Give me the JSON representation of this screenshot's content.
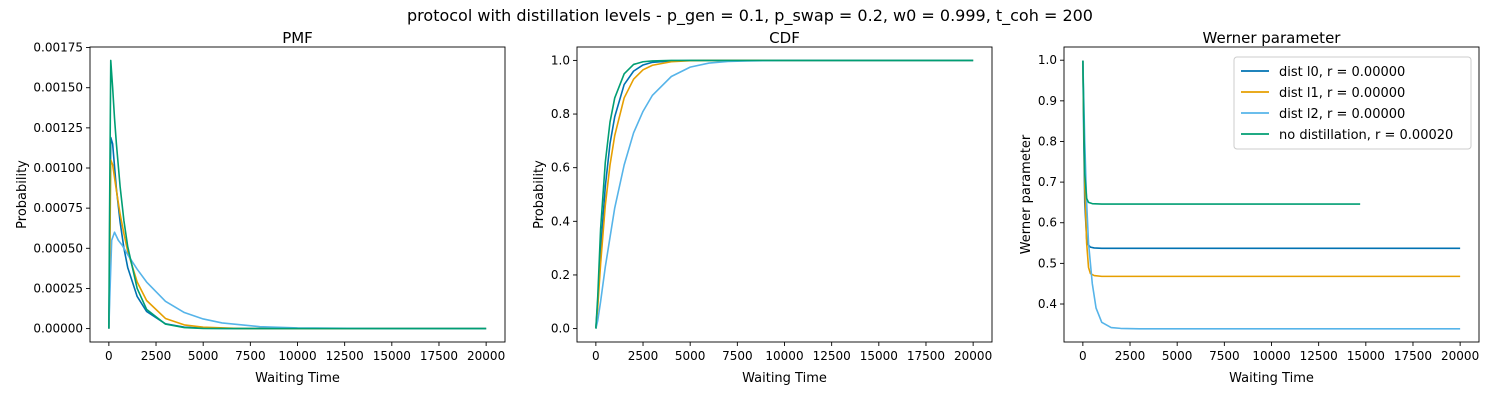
{
  "figure_title": "protocol with distillation levels - p_gen = 0.1, p_swap = 0.2, w0 = 0.999, t_coh = 200",
  "chart_data": [
    {
      "type": "line",
      "title": "PMF",
      "xlabel": "Waiting Time",
      "ylabel": "Probability",
      "xlim": [
        -1000,
        21000
      ],
      "ylim": [
        -8.35e-05,
        0.0017535
      ],
      "xticks": [
        0,
        2500,
        5000,
        7500,
        10000,
        12500,
        15000,
        17500,
        20000
      ],
      "xtick_labels": [
        "0",
        "2500",
        "5000",
        "7500",
        "10000",
        "12500",
        "15000",
        "17500",
        "20000"
      ],
      "yticks": [
        0,
        0.00025,
        0.0005,
        0.00075,
        0.001,
        0.00125,
        0.0015,
        0.00175
      ],
      "ytick_labels": [
        "0.00000",
        "0.00025",
        "0.00050",
        "0.00075",
        "0.00100",
        "0.00125",
        "0.00150",
        "0.00175"
      ],
      "series": [
        {
          "color": "#0072b2",
          "x": [
            0,
            30,
            100,
            200,
            400,
            600,
            800,
            1000,
            1500,
            2000,
            3000,
            4000,
            5000,
            7000,
            10000,
            15000,
            20000
          ],
          "y": [
            0,
            0.0003,
            0.00119,
            0.00115,
            0.00087,
            0.00066,
            0.0005,
            0.00038,
            0.0002,
            0.000107,
            3e-05,
            9e-06,
            2.5e-06,
            0,
            0,
            0,
            0
          ]
        },
        {
          "color": "#e69f00",
          "x": [
            0,
            30,
            100,
            200,
            400,
            600,
            800,
            1000,
            1500,
            2000,
            3000,
            4000,
            5000,
            7000,
            10000,
            15000,
            20000
          ],
          "y": [
            0,
            0.0002,
            0.00105,
            0.00102,
            0.00086,
            0.00071,
            0.00059,
            0.00048,
            0.00029,
            0.000175,
            6.3e-05,
            2.3e-05,
            8.5e-06,
            0,
            0,
            0,
            0
          ]
        },
        {
          "color": "#56b4e9",
          "x": [
            0,
            50,
            150,
            300,
            500,
            700,
            1000,
            1500,
            2000,
            3000,
            4000,
            5000,
            6000,
            8000,
            10000,
            15000,
            20000
          ],
          "y": [
            0,
            0.0002,
            0.00055,
            0.0006,
            0.00055,
            0.00052,
            0.00046,
            0.00037,
            0.00029,
            0.00017,
            0.0001,
            6e-05,
            3.5e-05,
            1.2e-05,
            4e-06,
            0,
            0
          ]
        },
        {
          "color": "#009e73",
          "x": [
            0,
            30,
            100,
            200,
            300,
            400,
            600,
            800,
            1000,
            1500,
            2000,
            3000,
            4000,
            5000,
            7000,
            10000,
            15000,
            20000
          ],
          "y": [
            0,
            0.0006,
            0.00167,
            0.0015,
            0.00131,
            0.00115,
            0.00088,
            0.00067,
            0.00051,
            0.00025,
            0.00012,
            2.8e-05,
            6e-06,
            1e-06,
            0,
            0,
            0,
            0
          ]
        }
      ]
    },
    {
      "type": "line",
      "title": "CDF",
      "xlabel": "Waiting Time",
      "ylabel": "Probability",
      "xlim": [
        -1000,
        21000
      ],
      "ylim": [
        -0.05,
        1.05
      ],
      "xticks": [
        0,
        2500,
        5000,
        7500,
        10000,
        12500,
        15000,
        17500,
        20000
      ],
      "xtick_labels": [
        "0",
        "2500",
        "5000",
        "7500",
        "10000",
        "12500",
        "15000",
        "17500",
        "20000"
      ],
      "yticks": [
        0,
        0.2,
        0.4,
        0.6,
        0.8,
        1.0
      ],
      "ytick_labels": [
        "0.0",
        "0.2",
        "0.4",
        "0.6",
        "0.8",
        "1.0"
      ],
      "series": [
        {
          "color": "#0072b2",
          "x": [
            0,
            100,
            250,
            500,
            750,
            1000,
            1500,
            2000,
            2500,
            3000,
            4000,
            5000,
            6000,
            8000,
            10000,
            15000,
            20000
          ],
          "y": [
            0,
            0.1,
            0.29,
            0.53,
            0.69,
            0.79,
            0.91,
            0.96,
            0.983,
            0.993,
            0.998,
            0.9995,
            1,
            1,
            1,
            1,
            1
          ]
        },
        {
          "color": "#e69f00",
          "x": [
            0,
            100,
            250,
            500,
            750,
            1000,
            1500,
            2000,
            2500,
            3000,
            4000,
            5000,
            6000,
            8000,
            10000,
            15000,
            20000
          ],
          "y": [
            0,
            0.08,
            0.24,
            0.46,
            0.61,
            0.72,
            0.86,
            0.93,
            0.965,
            0.982,
            0.995,
            0.999,
            1,
            1,
            1,
            1,
            1
          ]
        },
        {
          "color": "#56b4e9",
          "x": [
            0,
            100,
            250,
            500,
            750,
            1000,
            1500,
            2000,
            2500,
            3000,
            4000,
            5000,
            6000,
            7000,
            8000,
            10000,
            15000,
            20000
          ],
          "y": [
            0,
            0.03,
            0.1,
            0.23,
            0.34,
            0.45,
            0.61,
            0.73,
            0.81,
            0.87,
            0.94,
            0.975,
            0.99,
            0.996,
            0.998,
            1,
            1,
            1
          ]
        },
        {
          "color": "#009e73",
          "x": [
            0,
            100,
            250,
            500,
            750,
            1000,
            1500,
            2000,
            2500,
            3000,
            4000,
            5000,
            6000,
            8000,
            10000,
            15000,
            20000
          ],
          "y": [
            0,
            0.12,
            0.37,
            0.62,
            0.77,
            0.86,
            0.95,
            0.985,
            0.995,
            0.998,
            1,
            1,
            1,
            1,
            1,
            1,
            1
          ]
        }
      ]
    },
    {
      "type": "line",
      "title": "Werner parameter",
      "xlabel": "Waiting Time",
      "ylabel": "Werner parameter",
      "xlim": [
        -1000,
        21000
      ],
      "ylim": [
        0.3065,
        1.0325
      ],
      "xticks": [
        0,
        2500,
        5000,
        7500,
        10000,
        12500,
        15000,
        17500,
        20000
      ],
      "xtick_labels": [
        "0",
        "2500",
        "5000",
        "7500",
        "10000",
        "12500",
        "15000",
        "17500",
        "20000"
      ],
      "yticks": [
        0.4,
        0.5,
        0.6,
        0.7,
        0.8,
        0.9,
        1.0
      ],
      "ytick_labels": [
        "0.4",
        "0.5",
        "0.6",
        "0.7",
        "0.8",
        "0.9",
        "1.0"
      ],
      "legend_position": "top-right",
      "series": [
        {
          "name": "dist l0, r = 0.00000",
          "color": "#0072b2",
          "x": [
            0,
            50,
            100,
            200,
            300,
            400,
            600,
            1000,
            2000,
            5000,
            10000,
            15000,
            20000
          ],
          "y": [
            0.999,
            0.8,
            0.65,
            0.56,
            0.545,
            0.54,
            0.538,
            0.537,
            0.537,
            0.537,
            0.537,
            0.537,
            0.537
          ]
        },
        {
          "name": "dist l1, r = 0.00000",
          "color": "#e69f00",
          "x": [
            0,
            50,
            100,
            200,
            300,
            400,
            600,
            1000,
            2000,
            5000,
            10000,
            15000,
            20000
          ],
          "y": [
            0.999,
            0.85,
            0.7,
            0.55,
            0.49,
            0.475,
            0.47,
            0.468,
            0.468,
            0.468,
            0.468,
            0.468,
            0.468
          ]
        },
        {
          "name": "dist l2, r = 0.00000",
          "color": "#56b4e9",
          "x": [
            0,
            50,
            100,
            200,
            300,
            500,
            700,
            1000,
            1500,
            2000,
            3000,
            5000,
            10000,
            15000,
            20000
          ],
          "y": [
            0.999,
            0.9,
            0.8,
            0.65,
            0.55,
            0.45,
            0.39,
            0.355,
            0.342,
            0.34,
            0.339,
            0.339,
            0.339,
            0.339,
            0.339
          ]
        },
        {
          "name": "no distillation, r = 0.00020",
          "color": "#009e73",
          "x": [
            0,
            50,
            100,
            200,
            300,
            500,
            1000,
            2000,
            5000,
            10000,
            14700
          ],
          "y": [
            0.999,
            0.85,
            0.72,
            0.66,
            0.65,
            0.647,
            0.646,
            0.646,
            0.646,
            0.646,
            0.646
          ]
        }
      ]
    }
  ]
}
